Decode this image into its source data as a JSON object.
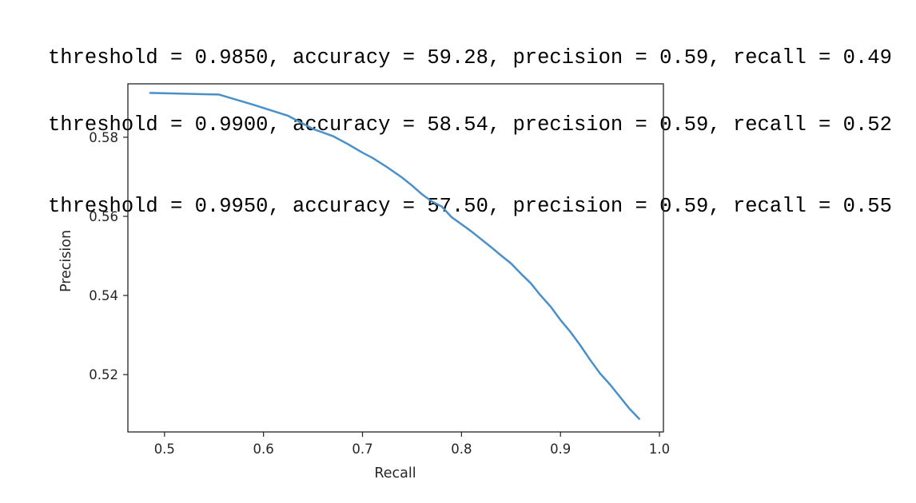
{
  "console": {
    "lines": [
      "threshold = 0.9850, accuracy = 59.28, precision = 0.59, recall = 0.49",
      "threshold = 0.9900, accuracy = 58.54, precision = 0.59, recall = 0.52",
      "threshold = 0.9950, accuracy = 57.50, precision = 0.59, recall = 0.55"
    ]
  },
  "chart_data": {
    "type": "line",
    "title": "",
    "xlabel": "Recall",
    "ylabel": "Precision",
    "xlim": [
      0.463,
      1.004
    ],
    "ylim": [
      0.5055,
      0.5935
    ],
    "xticks": [
      0.5,
      0.6,
      0.7,
      0.8,
      0.9,
      1.0
    ],
    "xtick_labels": [
      "0.5",
      "0.6",
      "0.7",
      "0.8",
      "0.9",
      "1.0"
    ],
    "yticks": [
      0.52,
      0.54,
      0.56,
      0.58
    ],
    "ytick_labels": [
      "0.52",
      "0.54",
      "0.56",
      "0.58"
    ],
    "grid": false,
    "line_color": "#4a90c8",
    "x": [
      0.4855,
      0.52,
      0.555,
      0.59,
      0.625,
      0.65,
      0.67,
      0.685,
      0.7,
      0.71,
      0.725,
      0.74,
      0.75,
      0.76,
      0.77,
      0.78,
      0.79,
      0.8,
      0.81,
      0.82,
      0.83,
      0.84,
      0.85,
      0.86,
      0.87,
      0.88,
      0.89,
      0.9,
      0.91,
      0.92,
      0.93,
      0.94,
      0.95,
      0.96,
      0.97,
      0.9795
    ],
    "y": [
      0.5912,
      0.591,
      0.5908,
      0.5882,
      0.5854,
      0.5821,
      0.5803,
      0.5783,
      0.5761,
      0.5748,
      0.5724,
      0.5698,
      0.5678,
      0.5656,
      0.5638,
      0.5625,
      0.5598,
      0.558,
      0.5562,
      0.5542,
      0.5522,
      0.5501,
      0.5481,
      0.5455,
      0.5431,
      0.54,
      0.5372,
      0.5338,
      0.5308,
      0.5274,
      0.5237,
      0.5203,
      0.5175,
      0.5144,
      0.5113,
      0.5088
    ]
  }
}
